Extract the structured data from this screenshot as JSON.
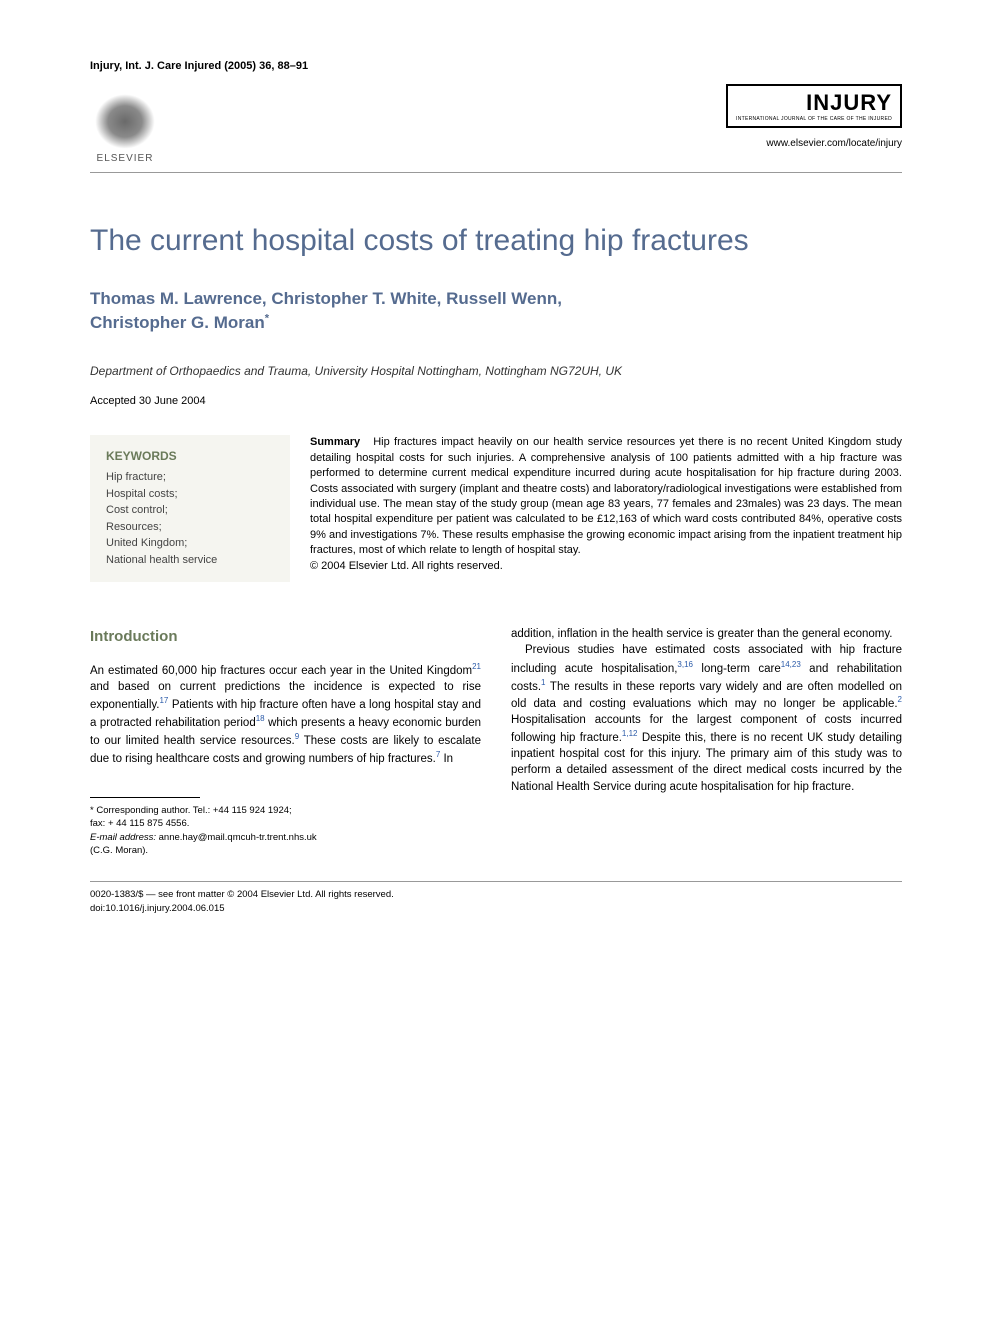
{
  "journal_ref": "Injury, Int. J. Care Injured (2005) 36, 88–91",
  "publisher": {
    "name": "ELSEVIER"
  },
  "journal": {
    "name": "INJURY",
    "subtitle": "INTERNATIONAL JOURNAL OF THE CARE OF THE INJURED",
    "url": "www.elsevier.com/locate/injury"
  },
  "article": {
    "title": "The current hospital costs of treating hip fractures",
    "authors_line1": "Thomas M. Lawrence, Christopher T. White, Russell Wenn,",
    "authors_line2": "Christopher G. Moran",
    "corr_mark": "*",
    "affiliation": "Department of Orthopaedics and Trauma, University Hospital Nottingham, Nottingham NG72UH, UK",
    "accepted": "Accepted 30 June 2004"
  },
  "keywords": {
    "heading": "KEYWORDS",
    "items": [
      "Hip fracture;",
      "Hospital costs;",
      "Cost control;",
      "Resources;",
      "United Kingdom;",
      "National health service"
    ]
  },
  "summary": {
    "label": "Summary",
    "text": "Hip fractures impact heavily on our health service resources yet there is no recent United Kingdom study detailing hospital costs for such injuries. A comprehensive analysis of 100 patients admitted with a hip fracture was performed to determine current medical expenditure incurred during acute hospitalisation for hip fracture during 2003. Costs associated with surgery (implant and theatre costs) and laboratory/radiological investigations were established from individual use. The mean stay of the study group (mean age 83 years, 77 females and 23males) was 23 days. The mean total hospital expenditure per patient was calculated to be £12,163 of which ward costs contributed 84%, operative costs 9% and investigations 7%. These results emphasise the growing economic impact arising from the inpatient treatment hip fractures, most of which relate to length of hospital stay.",
    "copyright": "© 2004 Elsevier Ltd. All rights reserved."
  },
  "introduction": {
    "heading": "Introduction",
    "col1": {
      "p1a": "An estimated 60,000 hip fractures occur each year in the United Kingdom",
      "r1": "21",
      "p1b": " and based on current predictions the incidence is expected to rise exponentially.",
      "r2": "17",
      "p1c": " Patients with hip fracture often have a long hospital stay and a protracted rehabilitation period",
      "r3": "18",
      "p1d": " which presents a heavy economic burden to our limited health service resources.",
      "r4": "9",
      "p1e": " These costs are likely to escalate due to rising healthcare costs and growing numbers of hip fractures.",
      "r5": "7",
      "p1f": " In"
    },
    "col2": {
      "p1": "addition, inflation in the health service is greater than the general economy.",
      "p2a": "Previous studies have estimated costs associated with hip fracture including acute hospitalisation,",
      "r1": "3,16",
      "p2b": " long-term care",
      "r2": "14,23",
      "p2c": " and rehabilitation costs.",
      "r3": "1",
      "p2d": " The results in these reports vary widely and are often modelled on old data and costing evaluations which may no longer be applicable.",
      "r4": "2",
      "p2e": " Hospitalisation accounts for the largest component of costs incurred following hip fracture.",
      "r5": "1,12",
      "p2f": " Despite this, there is no recent UK study detailing inpatient hospital cost for this injury. The primary aim of this study was to perform a detailed assessment of the direct medical costs incurred by the National Health Service during acute hospitalisation for hip fracture."
    }
  },
  "footnote": {
    "corr": "* Corresponding author. Tel.: +44 115 924 1924;",
    "fax": "fax: + 44 115 875 4556.",
    "email_label": "E-mail address:",
    "email": " anne.hay@mail.qmcuh-tr.trent.nhs.uk",
    "email_name": "(C.G. Moran)."
  },
  "bottom": {
    "line1": "0020-1383/$ — see front matter © 2004 Elsevier Ltd. All rights reserved.",
    "line2": "doi:10.1016/j.injury.2004.06.015"
  },
  "colors": {
    "heading": "#556b8f",
    "kw": "#6a7a5a",
    "ref": "#2a5aa8",
    "bg": "#ffffff",
    "kwbox": "#f5f5f0"
  }
}
